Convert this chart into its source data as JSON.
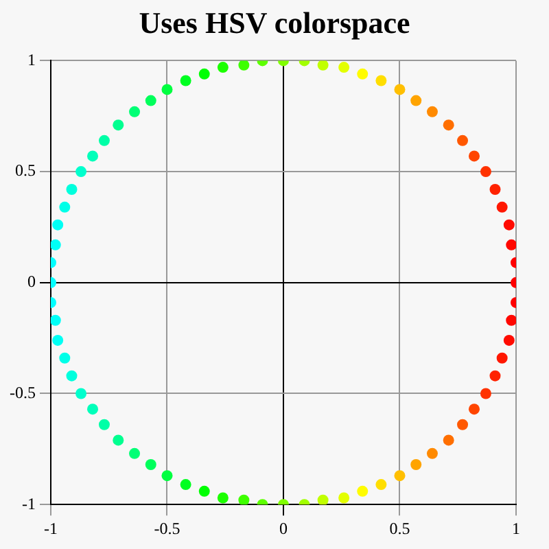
{
  "chart_data": {
    "type": "scatter",
    "title": "Uses HSV colorspace",
    "series": [
      {
        "x": [
          1,
          1,
          0.98,
          0.97,
          0.94,
          0.91,
          0.87,
          0.82,
          0.77,
          0.71,
          0.64,
          0.57,
          0.5,
          0.42,
          0.34,
          0.26,
          0.17,
          0.09,
          0,
          -0.09,
          -0.17,
          -0.26,
          -0.34,
          -0.42,
          -0.5,
          -0.57,
          -0.64,
          -0.71,
          -0.77,
          -0.82,
          -0.87,
          -0.91,
          -0.94,
          -0.97,
          -0.98,
          -1,
          -1,
          -1,
          -0.98,
          -0.97,
          -0.94,
          -0.91,
          -0.87,
          -0.82,
          -0.77,
          -0.71,
          -0.64,
          -0.57,
          -0.5,
          -0.42,
          -0.34,
          -0.26,
          -0.17,
          -0.09,
          0,
          0.09,
          0.17,
          0.26,
          0.34,
          0.42,
          0.5,
          0.57,
          0.64,
          0.71,
          0.77,
          0.82,
          0.87,
          0.91,
          0.94,
          0.97,
          0.98,
          1
        ],
        "values": [
          0,
          0.09,
          0.17,
          0.26,
          0.34,
          0.42,
          0.5,
          0.57,
          0.64,
          0.71,
          0.77,
          0.82,
          0.87,
          0.91,
          0.94,
          0.97,
          0.98,
          1,
          1,
          1,
          0.98,
          0.97,
          0.94,
          0.91,
          0.87,
          0.82,
          0.77,
          0.71,
          0.64,
          0.57,
          0.5,
          0.42,
          0.34,
          0.26,
          0.17,
          0.09,
          0,
          -0.09,
          -0.17,
          -0.26,
          -0.34,
          -0.42,
          -0.5,
          -0.57,
          -0.64,
          -0.71,
          -0.77,
          -0.82,
          -0.87,
          -0.91,
          -0.94,
          -0.97,
          -0.98,
          -1,
          -1,
          -1,
          -0.98,
          -0.97,
          -0.94,
          -0.91,
          -0.87,
          -0.82,
          -0.77,
          -0.71,
          -0.64,
          -0.57,
          -0.5,
          -0.42,
          -0.34,
          -0.26,
          -0.17,
          -0.09
        ],
        "colors": [
          "#ff0000",
          "#ff0000",
          "#ff0800",
          "#ff0b00",
          "#ff1700",
          "#ff2200",
          "#ff3200",
          "#ff4500",
          "#ff5800",
          "#ff6f00",
          "#ff8a00",
          "#ffa400",
          "#ffbf00",
          "#ffde00",
          "#fffc00",
          "#e3ff00",
          "#c1ff00",
          "#a2ff00",
          "#80ff00",
          "#5dff00",
          "#3eff00",
          "#1cff00",
          "#00ff03",
          "#00ff21",
          "#00ff40",
          "#00ff5b",
          "#00ff75",
          "#00ff90",
          "#00ffa7",
          "#00ffba",
          "#00ffcd",
          "#00ffdd",
          "#00ffe8",
          "#00fff4",
          "#00fff7",
          "#00ffff",
          "#00ffff",
          "#00ffff",
          "#00fff7",
          "#00fff4",
          "#00ffe8",
          "#00ffdd",
          "#00ffcd",
          "#00ffba",
          "#00ffa7",
          "#00ff90",
          "#00ff75",
          "#00ff5b",
          "#00ff40",
          "#00ff21",
          "#00ff03",
          "#1cff00",
          "#3eff00",
          "#5dff00",
          "#80ff00",
          "#a2ff00",
          "#c1ff00",
          "#e3ff00",
          "#fffc00",
          "#ffde00",
          "#ffbf00",
          "#ffa400",
          "#ff8a00",
          "#ff6f00",
          "#ff5800",
          "#ff4500",
          "#ff3200",
          "#ff2200",
          "#ff1700",
          "#ff0b00",
          "#ff0800",
          "#ff0000"
        ]
      }
    ],
    "xlim": [
      -1,
      1
    ],
    "ylim": [
      -1,
      1
    ],
    "xticks": [
      -1,
      -0.5,
      0,
      0.5,
      1
    ],
    "yticks": [
      -1,
      -0.5,
      0,
      0.5,
      1
    ],
    "grid": true,
    "marker": "circle"
  }
}
